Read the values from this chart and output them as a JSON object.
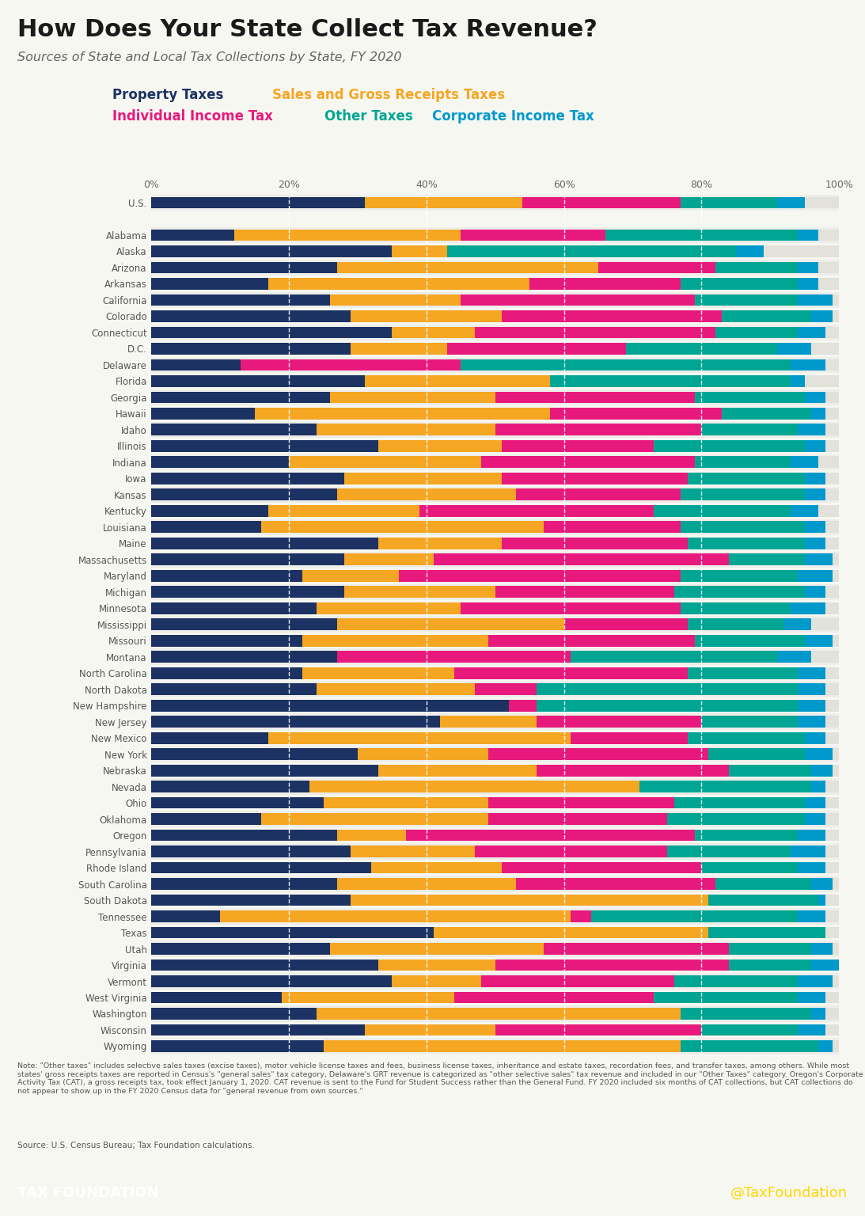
{
  "title": "How Does Your State Collect Tax Revenue?",
  "subtitle": "Sources of State and Local Tax Collections by State, FY 2020",
  "legend_items": [
    {
      "label": "Property Taxes",
      "color": "#1c3263"
    },
    {
      "label": "Sales and Gross Receipts Taxes",
      "color": "#f5a623"
    },
    {
      "label": "Individual Income Tax",
      "color": "#e8197d"
    },
    {
      "label": "Other Taxes",
      "color": "#00a693"
    },
    {
      "label": "Corporate Income Tax",
      "color": "#0099cc"
    }
  ],
  "note": "Note: \"Other taxes\" includes selective sales taxes (excise taxes), motor vehicle license taxes and fees, business license taxes, inheritance and estate taxes, recordation fees, and transfer taxes, among others. While most states' gross receipts taxes are reported in Census's \"general sales\" tax category, Delaware's GRT revenue is categorized as \"other selective sales\" tax revenue and included in our \"Other Taxes\" category. Oregon's Corporate Activity Tax (CAT), a gross receipts tax, took effect January 1, 2020. CAT revenue is sent to the Fund for Student Success rather than the General Fund. FY 2020 included six months of CAT collections, but CAT collections do not appear to show up in the FY 2020 Census data for \"general revenue from own sources.\"",
  "source": "Source: U.S. Census Bureau; Tax Foundation calculations.",
  "footer_left": "TAX FOUNDATION",
  "footer_right": "@TaxFoundation",
  "footer_color": "#00aadd",
  "states": [
    "U.S.",
    "",
    "Alabama",
    "Alaska",
    "Arizona",
    "Arkansas",
    "California",
    "Colorado",
    "Connecticut",
    "D.C.",
    "Delaware",
    "Florida",
    "Georgia",
    "Hawaii",
    "Idaho",
    "Illinois",
    "Indiana",
    "Iowa",
    "Kansas",
    "Kentucky",
    "Louisiana",
    "Maine",
    "Massachusetts",
    "Maryland",
    "Michigan",
    "Minnesota",
    "Mississippi",
    "Missouri",
    "Montana",
    "North Carolina",
    "North Dakota",
    "New Hampshire",
    "New Jersey",
    "New Mexico",
    "New York",
    "Nebraska",
    "Nevada",
    "Ohio",
    "Oklahoma",
    "Oregon",
    "Pennsylvania",
    "Rhode Island",
    "South Carolina",
    "South Dakota",
    "Tennessee",
    "Texas",
    "Utah",
    "Virginia",
    "Vermont",
    "West Virginia",
    "Washington",
    "Wisconsin",
    "Wyoming"
  ],
  "data": {
    "U.S.": [
      0.31,
      0.23,
      0.23,
      0.14,
      0.04
    ],
    "": [
      0,
      0,
      0,
      0,
      0
    ],
    "Alabama": [
      0.12,
      0.33,
      0.21,
      0.28,
      0.03
    ],
    "Alaska": [
      0.35,
      0.08,
      0.0,
      0.42,
      0.04
    ],
    "Arizona": [
      0.27,
      0.38,
      0.17,
      0.12,
      0.03
    ],
    "Arkansas": [
      0.17,
      0.38,
      0.22,
      0.17,
      0.03
    ],
    "California": [
      0.26,
      0.19,
      0.34,
      0.15,
      0.05
    ],
    "Colorado": [
      0.29,
      0.22,
      0.32,
      0.13,
      0.03
    ],
    "Connecticut": [
      0.35,
      0.12,
      0.35,
      0.12,
      0.04
    ],
    "D.C.": [
      0.29,
      0.14,
      0.26,
      0.22,
      0.05
    ],
    "Delaware": [
      0.13,
      0.0,
      0.32,
      0.48,
      0.05
    ],
    "Florida": [
      0.31,
      0.27,
      0.0,
      0.35,
      0.02
    ],
    "Georgia": [
      0.26,
      0.24,
      0.29,
      0.16,
      0.03
    ],
    "Hawaii": [
      0.15,
      0.43,
      0.25,
      0.13,
      0.02
    ],
    "Idaho": [
      0.24,
      0.26,
      0.3,
      0.14,
      0.04
    ],
    "Illinois": [
      0.33,
      0.18,
      0.22,
      0.22,
      0.03
    ],
    "Indiana": [
      0.2,
      0.28,
      0.31,
      0.14,
      0.04
    ],
    "Iowa": [
      0.28,
      0.23,
      0.27,
      0.17,
      0.03
    ],
    "Kansas": [
      0.27,
      0.26,
      0.24,
      0.18,
      0.03
    ],
    "Kentucky": [
      0.17,
      0.22,
      0.34,
      0.2,
      0.04
    ],
    "Louisiana": [
      0.16,
      0.41,
      0.2,
      0.18,
      0.03
    ],
    "Maine": [
      0.33,
      0.18,
      0.27,
      0.17,
      0.03
    ],
    "Massachusetts": [
      0.28,
      0.13,
      0.43,
      0.11,
      0.04
    ],
    "Maryland": [
      0.22,
      0.14,
      0.41,
      0.17,
      0.05
    ],
    "Michigan": [
      0.28,
      0.22,
      0.26,
      0.19,
      0.03
    ],
    "Minnesota": [
      0.24,
      0.21,
      0.32,
      0.16,
      0.05
    ],
    "Mississippi": [
      0.27,
      0.33,
      0.18,
      0.14,
      0.04
    ],
    "Missouri": [
      0.22,
      0.27,
      0.3,
      0.16,
      0.04
    ],
    "Montana": [
      0.27,
      0.0,
      0.34,
      0.3,
      0.05
    ],
    "North Carolina": [
      0.22,
      0.22,
      0.34,
      0.16,
      0.04
    ],
    "North Dakota": [
      0.24,
      0.23,
      0.09,
      0.38,
      0.04
    ],
    "New Hampshire": [
      0.52,
      0.0,
      0.04,
      0.38,
      0.04
    ],
    "New Jersey": [
      0.42,
      0.14,
      0.24,
      0.14,
      0.04
    ],
    "New Mexico": [
      0.17,
      0.44,
      0.17,
      0.17,
      0.03
    ],
    "New York": [
      0.3,
      0.19,
      0.32,
      0.14,
      0.04
    ],
    "Nebraska": [
      0.33,
      0.23,
      0.28,
      0.12,
      0.03
    ],
    "Nevada": [
      0.23,
      0.48,
      0.0,
      0.25,
      0.02
    ],
    "Ohio": [
      0.25,
      0.24,
      0.27,
      0.19,
      0.03
    ],
    "Oklahoma": [
      0.16,
      0.33,
      0.26,
      0.2,
      0.03
    ],
    "Oregon": [
      0.27,
      0.1,
      0.42,
      0.15,
      0.04
    ],
    "Pennsylvania": [
      0.29,
      0.18,
      0.28,
      0.18,
      0.05
    ],
    "Rhode Island": [
      0.32,
      0.19,
      0.29,
      0.14,
      0.04
    ],
    "South Carolina": [
      0.27,
      0.26,
      0.29,
      0.14,
      0.03
    ],
    "South Dakota": [
      0.29,
      0.52,
      0.0,
      0.16,
      0.01
    ],
    "Tennessee": [
      0.1,
      0.51,
      0.03,
      0.3,
      0.04
    ],
    "Texas": [
      0.41,
      0.4,
      0.0,
      0.17,
      0.0
    ],
    "Utah": [
      0.26,
      0.31,
      0.27,
      0.12,
      0.03
    ],
    "Virginia": [
      0.33,
      0.17,
      0.34,
      0.12,
      0.04
    ],
    "Vermont": [
      0.35,
      0.13,
      0.28,
      0.18,
      0.05
    ],
    "West Virginia": [
      0.19,
      0.25,
      0.29,
      0.21,
      0.04
    ],
    "Washington": [
      0.24,
      0.53,
      0.0,
      0.19,
      0.02
    ],
    "Wisconsin": [
      0.31,
      0.19,
      0.3,
      0.14,
      0.04
    ],
    "Wyoming": [
      0.25,
      0.52,
      0.0,
      0.2,
      0.02
    ]
  },
  "colors": [
    "#1c3263",
    "#f5a623",
    "#e8197d",
    "#00a693",
    "#0099cc"
  ],
  "bg_color": "#f7f7f2",
  "bar_bg": "#e2e2da",
  "stripe_color": "#ededea"
}
